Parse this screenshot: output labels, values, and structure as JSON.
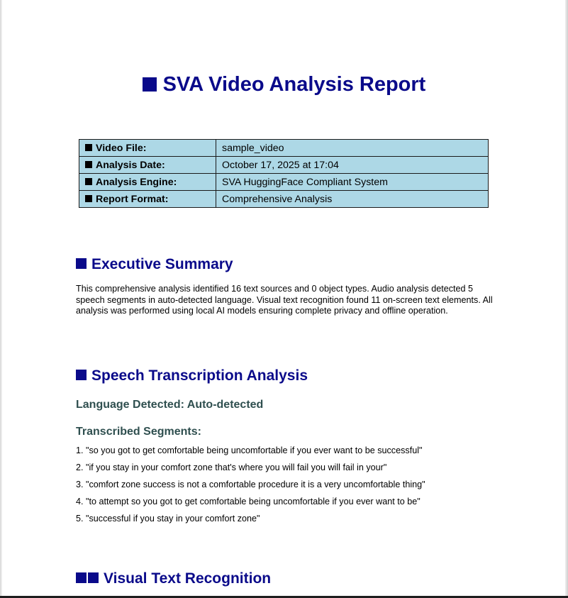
{
  "report": {
    "title": "SVA Video Analysis Report"
  },
  "meta_table": {
    "rows": [
      {
        "key": "Video File:",
        "value": "sample_video"
      },
      {
        "key": "Analysis Date:",
        "value": "October 17, 2025 at 17:04"
      },
      {
        "key": "Analysis Engine:",
        "value": "SVA HuggingFace Compliant System"
      },
      {
        "key": "Report Format:",
        "value": "Comprehensive Analysis"
      }
    ]
  },
  "executive_summary": {
    "heading": "Executive Summary",
    "text": "This comprehensive analysis identified 16 text sources and 0 object types. Audio analysis detected 5 speech segments in auto-detected language. Visual text recognition found 11 on-screen text elements. All analysis was performed using local AI models ensuring complete privacy and offline operation."
  },
  "speech": {
    "heading": "Speech Transcription Analysis",
    "language_line": "Language Detected: Auto-detected",
    "segments_heading": "Transcribed Segments:",
    "segments": [
      "1. \"so you got to get comfortable being uncomfortable if you ever want to be successful\"",
      "2. \"if you stay in your comfort zone that's where you will fail you will fail in your\"",
      "3. \"comfort zone success is not a comfortable procedure it is a very uncomfortable thing\"",
      "4. \"to attempt so you got to get comfortable being uncomfortable if you ever want to be\"",
      "5. \"successful if you stay in your comfort zone\""
    ]
  },
  "visual_text": {
    "heading": "Visual Text Recognition"
  },
  "colors": {
    "heading": "#0a0a8a",
    "subheading": "#2f4f4f",
    "table_bg": "#add8e6"
  }
}
